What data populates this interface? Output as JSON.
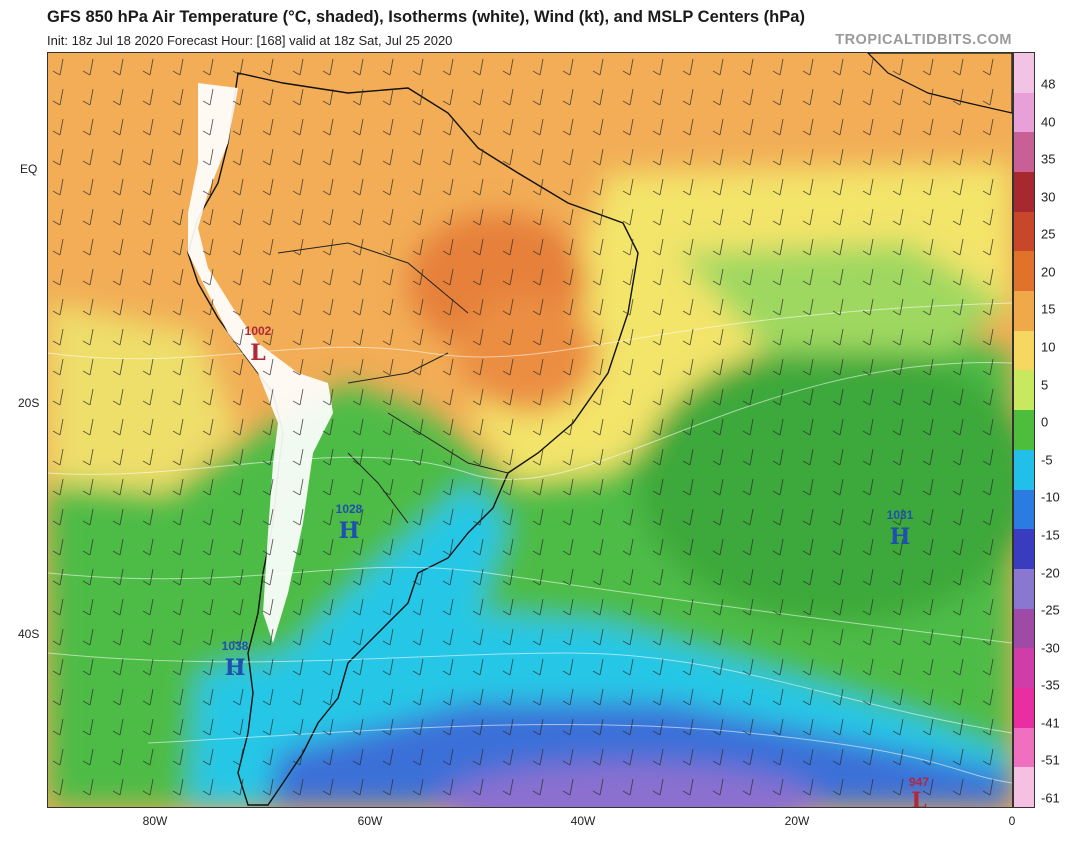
{
  "header": {
    "title": "GFS 850 hPa Air Temperature (°C, shaded), Isotherms (white), Wind (kt), and MSLP Centers (hPa)",
    "init_line": "Init: 18z Jul 18 2020   Forecast Hour: [168]   valid at 18z Sat, Jul 25 2020",
    "brand": "TROPICALTIDBITS.COM"
  },
  "map": {
    "lat_labels": [
      "EQ",
      "20S",
      "40S"
    ],
    "lon_labels": [
      "80W",
      "60W",
      "40W",
      "20W",
      "0"
    ],
    "pressure_centers": [
      {
        "value": "1002",
        "letter": "L",
        "kind": "low",
        "color": "#b0283a"
      },
      {
        "value": "1028",
        "letter": "H",
        "kind": "high",
        "color": "#1f4fb0"
      },
      {
        "value": "1031",
        "letter": "H",
        "kind": "high",
        "color": "#1f4fb0"
      },
      {
        "value": "1038",
        "letter": "H",
        "kind": "high",
        "color": "#1f4fb0"
      },
      {
        "value": "947",
        "letter": "L",
        "kind": "low",
        "color": "#b0283a"
      }
    ]
  },
  "colorbar": {
    "labels": [
      "48",
      "40",
      "35",
      "30",
      "25",
      "20",
      "15",
      "10",
      "5",
      "0",
      "-5",
      "-10",
      "-15",
      "-20",
      "-25",
      "-30",
      "-35",
      "-41",
      "-51",
      "-61"
    ],
    "colors": [
      "#f2c3e4",
      "#e7a0d8",
      "#c85f96",
      "#a8282f",
      "#c8462a",
      "#e0722c",
      "#f0a848",
      "#f6d860",
      "#c8e860",
      "#4cbe3c",
      "#22c0e8",
      "#2a7ce0",
      "#3a3cc0",
      "#8a78d0",
      "#a04aa8",
      "#d03ca8",
      "#e82ea0",
      "#f070c0",
      "#f6c0e2"
    ]
  }
}
